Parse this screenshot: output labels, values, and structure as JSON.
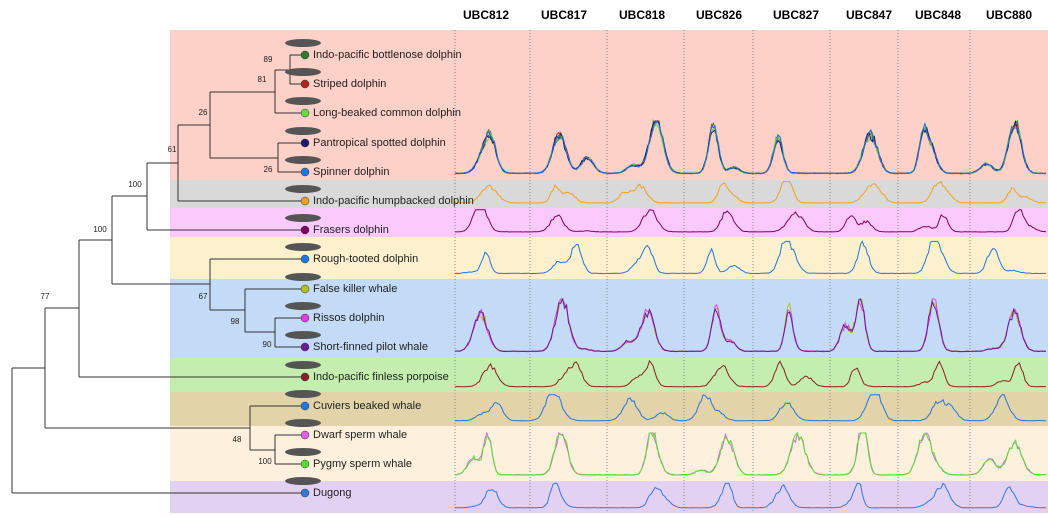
{
  "columns": [
    "UBC812",
    "UBC817",
    "UBC818",
    "UBC826",
    "UBC827",
    "UBC847",
    "UBC848",
    "UBC880"
  ],
  "taxa": [
    {
      "label": "Indo-pacific bottlenose dolphin",
      "color": "#2e7d32"
    },
    {
      "label": "Striped dolphin",
      "color": "#b22222"
    },
    {
      "label": "Long-beaked common dolphin",
      "color": "#66dd44"
    },
    {
      "label": "Pantropical spotted dolphin",
      "color": "#1a1a6e"
    },
    {
      "label": "Spinner dolphin",
      "color": "#2277dd"
    },
    {
      "label": "Indo-pacific humpbacked dolphin",
      "color": "#f0a020"
    },
    {
      "label": "Frasers dolphin",
      "color": "#800060"
    },
    {
      "label": "Rough-tooted dolphin",
      "color": "#2277dd"
    },
    {
      "label": "False killer whale",
      "color": "#b8c020"
    },
    {
      "label": "Rissos dolphin",
      "color": "#e040e0"
    },
    {
      "label": "Short-finned pilot whale",
      "color": "#6a1b9a"
    },
    {
      "label": "Indo-pacific finless porpoise",
      "color": "#8b2020"
    },
    {
      "label": "Cuviers beaked whale",
      "color": "#2277dd"
    },
    {
      "label": "Dwarf sperm whale",
      "color": "#e060e0"
    },
    {
      "label": "Pygmy sperm whale",
      "color": "#55dd33"
    },
    {
      "label": "Dugong",
      "color": "#3377dd"
    }
  ],
  "bootstrap": [
    89,
    81,
    26,
    61,
    26,
    100,
    100,
    67,
    98,
    90,
    77,
    48,
    100
  ]
}
